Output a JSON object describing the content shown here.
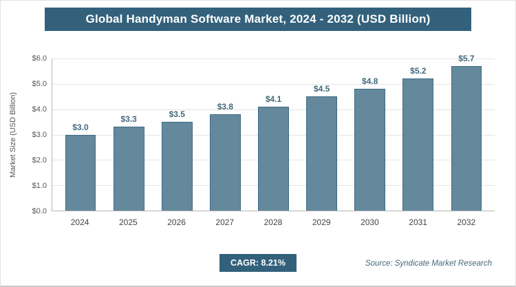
{
  "header": {
    "title": "Global Handyman Software Market, 2024 - 2032 (USD Billion)"
  },
  "chart_data": {
    "type": "bar",
    "title": "Global Handyman Software Market, 2024 - 2032 (USD Billion)",
    "categories": [
      "2024",
      "2025",
      "2026",
      "2027",
      "2028",
      "2029",
      "2030",
      "2031",
      "2032"
    ],
    "values": [
      3.0,
      3.3,
      3.5,
      3.8,
      4.1,
      4.5,
      4.8,
      5.2,
      5.7
    ],
    "value_labels": [
      "$3.0",
      "$3.3",
      "$3.5",
      "$3.8",
      "$4.1",
      "$4.5",
      "$4.8",
      "$5.2",
      "$5.7"
    ],
    "xlabel": "",
    "ylabel": "Market Size (USD Billion)",
    "ylim": [
      0,
      6.0
    ],
    "ytick_step": 1.0,
    "ytick_labels": [
      "$0.0",
      "$1.0",
      "$2.0",
      "$3.0",
      "$4.0",
      "$5.0",
      "$6.0"
    ],
    "grid": true,
    "legend": "none",
    "bar_color": "#64899d",
    "bar_border_color": "#3f6a82"
  },
  "footer": {
    "cagr_label": "CAGR: 8.21%",
    "source": "Source: Syndicate Market Research"
  },
  "colors": {
    "header_bg": "#33617c",
    "badge_bg": "#33617c",
    "accent": "#33617c"
  }
}
